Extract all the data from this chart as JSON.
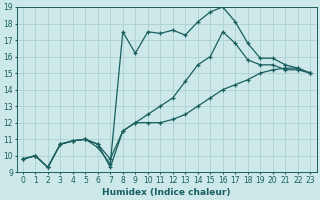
{
  "xlabel": "Humidex (Indice chaleur)",
  "xlim": [
    -0.5,
    23.5
  ],
  "ylim": [
    9,
    19
  ],
  "xticks": [
    0,
    1,
    2,
    3,
    4,
    5,
    6,
    7,
    8,
    9,
    10,
    11,
    12,
    13,
    14,
    15,
    16,
    17,
    18,
    19,
    20,
    21,
    22,
    23
  ],
  "yticks": [
    9,
    10,
    11,
    12,
    13,
    14,
    15,
    16,
    17,
    18,
    19
  ],
  "bg_color": "#cde8e8",
  "line_color": "#1a5f5f",
  "grid_color": "#a8cccc",
  "lines": [
    {
      "x": [
        0,
        1,
        2,
        3,
        4,
        5,
        6,
        7,
        8,
        9,
        10,
        11,
        12,
        13,
        14,
        15,
        16,
        17,
        18,
        19,
        20,
        21,
        22,
        23
      ],
      "y": [
        9.8,
        10.0,
        9.3,
        10.7,
        10.9,
        11.0,
        10.7,
        9.3,
        11.5,
        12.0,
        12.0,
        12.0,
        12.2,
        12.5,
        13.0,
        13.5,
        14.0,
        14.3,
        14.6,
        15.0,
        15.2,
        15.3,
        15.3,
        15.0
      ]
    },
    {
      "x": [
        0,
        1,
        2,
        3,
        4,
        5,
        6,
        7,
        8,
        9,
        10,
        11,
        12,
        13,
        14,
        15,
        16,
        17,
        18,
        19,
        20,
        21,
        22,
        23
      ],
      "y": [
        9.8,
        10.0,
        9.3,
        10.7,
        10.9,
        11.0,
        10.7,
        9.8,
        11.5,
        12.0,
        12.5,
        13.0,
        13.5,
        14.5,
        15.5,
        16.0,
        17.5,
        16.8,
        15.8,
        15.5,
        15.5,
        15.2,
        15.2,
        15.0
      ]
    },
    {
      "x": [
        0,
        1,
        2,
        3,
        4,
        5,
        6,
        7,
        8,
        9,
        10,
        11,
        12,
        13,
        14,
        15,
        16,
        17,
        18,
        19,
        20,
        21,
        22,
        23
      ],
      "y": [
        9.8,
        10.0,
        9.3,
        10.7,
        10.9,
        11.0,
        10.5,
        9.5,
        17.5,
        16.2,
        17.5,
        17.4,
        17.6,
        17.3,
        18.1,
        18.7,
        19.0,
        18.1,
        16.8,
        15.9,
        15.9,
        15.5,
        15.3,
        15.0
      ]
    }
  ]
}
